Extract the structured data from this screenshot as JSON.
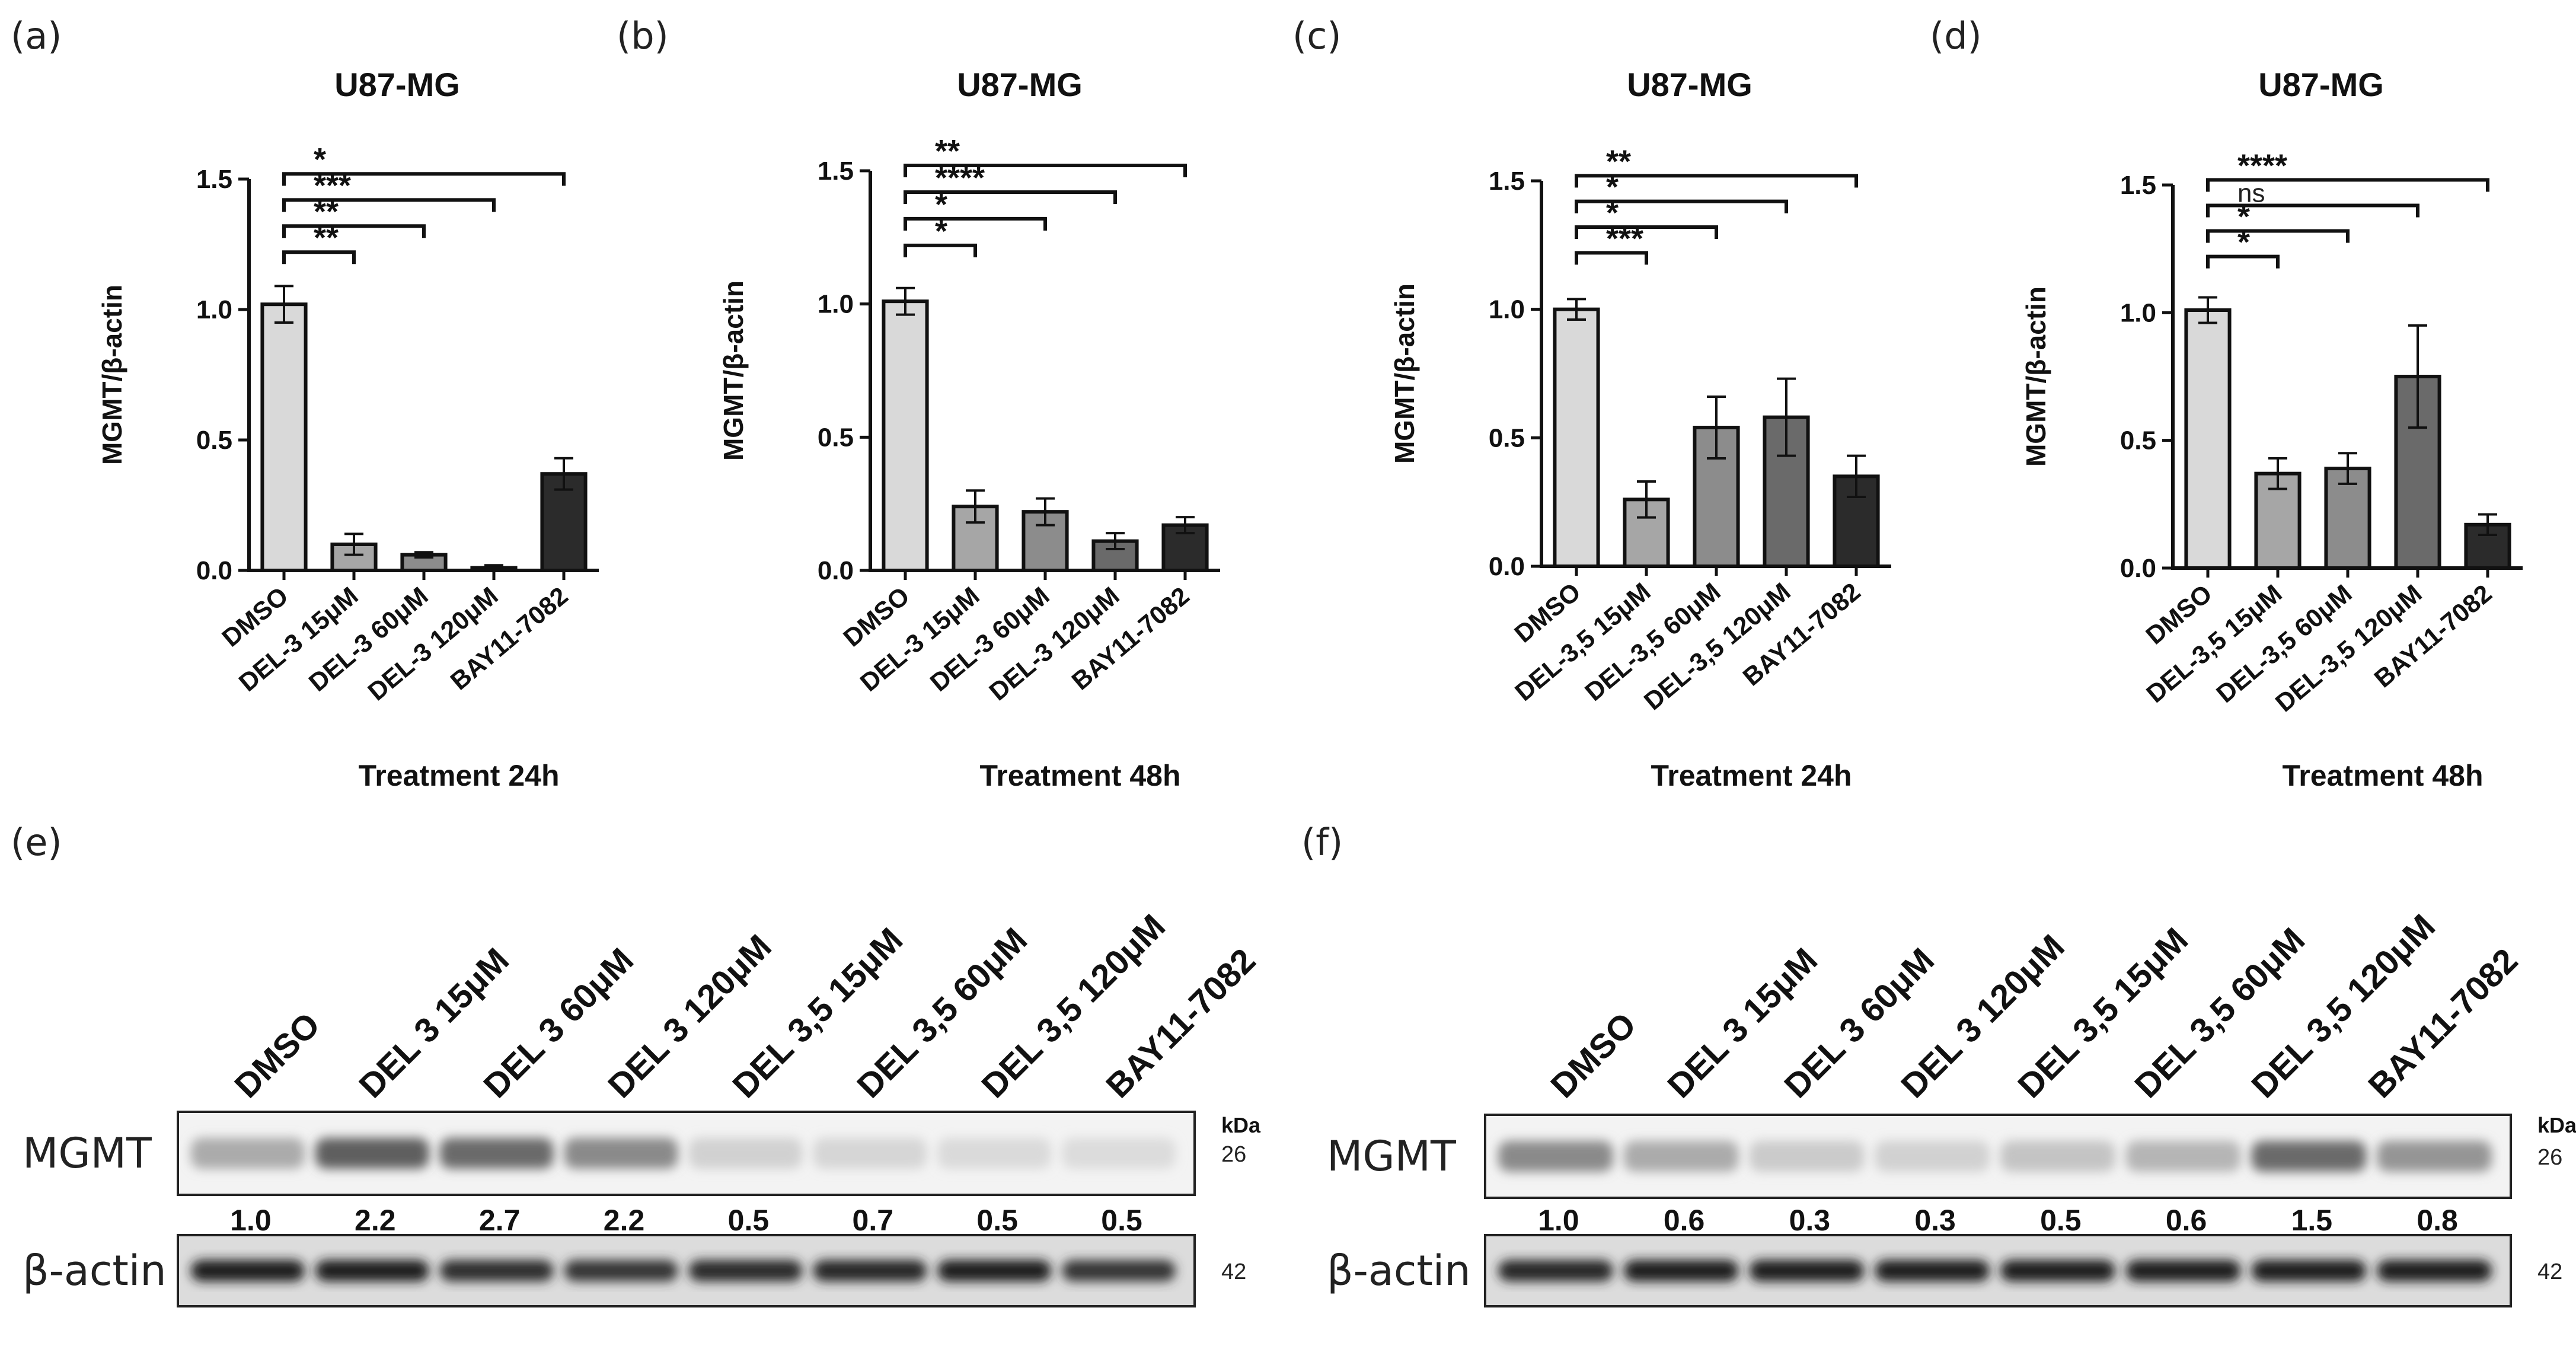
{
  "chart_data": [
    {
      "panel": "(a)",
      "type": "bar",
      "title": "U87-MG",
      "xlabel": "Treatment 24h",
      "ylabel": "MGMT/β-actin",
      "ylim": [
        0,
        1.5
      ],
      "yticks": [
        "0.0",
        "0.5",
        "1.0",
        "1.5"
      ],
      "categories": [
        "DMSO",
        "DEL-3 15μM",
        "DEL-3 60μM",
        "DEL-3 120μM",
        "BAY11-7082"
      ],
      "values": [
        1.02,
        0.1,
        0.06,
        0.01,
        0.37
      ],
      "errors": [
        0.07,
        0.04,
        0.01,
        0.01,
        0.06
      ],
      "colors": [
        "#d9d9d9",
        "#a6a6a6",
        "#8c8c8c",
        "#6a6a6a",
        "#2b2b2b"
      ],
      "significance": [
        {
          "to": 1,
          "label": "**"
        },
        {
          "to": 2,
          "label": "**"
        },
        {
          "to": 3,
          "label": "***"
        },
        {
          "to": 4,
          "label": "*"
        }
      ]
    },
    {
      "panel": "(b)",
      "type": "bar",
      "title": "U87-MG",
      "xlabel": "Treatment 48h",
      "ylabel": "MGMT/β-actin",
      "ylim": [
        0,
        1.5
      ],
      "yticks": [
        "0.0",
        "0.5",
        "1.0",
        "1.5"
      ],
      "categories": [
        "DMSO",
        "DEL-3 15μM",
        "DEL-3 60μM",
        "DEL-3 120μM",
        "BAY11-7082"
      ],
      "values": [
        1.01,
        0.24,
        0.22,
        0.11,
        0.17
      ],
      "errors": [
        0.05,
        0.06,
        0.05,
        0.03,
        0.03
      ],
      "colors": [
        "#d9d9d9",
        "#a6a6a6",
        "#8c8c8c",
        "#6a6a6a",
        "#2b2b2b"
      ],
      "significance": [
        {
          "to": 1,
          "label": "*"
        },
        {
          "to": 2,
          "label": "*"
        },
        {
          "to": 3,
          "label": "****"
        },
        {
          "to": 4,
          "label": "**"
        }
      ]
    },
    {
      "panel": "(c)",
      "type": "bar",
      "title": "U87-MG",
      "xlabel": "Treatment 24h",
      "ylabel": "MGMT/β-actin",
      "ylim": [
        0,
        1.5
      ],
      "yticks": [
        "0.0",
        "0.5",
        "1.0",
        "1.5"
      ],
      "categories": [
        "DMSO",
        "DEL-3,5 15μM",
        "DEL-3,5 60μM",
        "DEL-3,5 120μM",
        "BAY11-7082"
      ],
      "values": [
        1.0,
        0.26,
        0.54,
        0.58,
        0.35
      ],
      "errors": [
        0.04,
        0.07,
        0.12,
        0.15,
        0.08
      ],
      "colors": [
        "#d9d9d9",
        "#a6a6a6",
        "#8c8c8c",
        "#6a6a6a",
        "#2b2b2b"
      ],
      "significance": [
        {
          "to": 1,
          "label": "***"
        },
        {
          "to": 2,
          "label": "*"
        },
        {
          "to": 3,
          "label": "*"
        },
        {
          "to": 4,
          "label": "**"
        }
      ]
    },
    {
      "panel": "(d)",
      "type": "bar",
      "title": "U87-MG",
      "xlabel": "Treatment 48h",
      "ylabel": "MGMT/β-actin",
      "ylim": [
        0,
        1.5
      ],
      "yticks": [
        "0.0",
        "0.5",
        "1.0",
        "1.5"
      ],
      "categories": [
        "DMSO",
        "DEL-3,5 15μM",
        "DEL-3,5 60μM",
        "DEL-3,5 120μM",
        "BAY11-7082"
      ],
      "values": [
        1.01,
        0.37,
        0.39,
        0.75,
        0.17
      ],
      "errors": [
        0.05,
        0.06,
        0.06,
        0.2,
        0.04
      ],
      "colors": [
        "#d9d9d9",
        "#a6a6a6",
        "#8c8c8c",
        "#6a6a6a",
        "#2b2b2b"
      ],
      "significance": [
        {
          "to": 1,
          "label": "*"
        },
        {
          "to": 2,
          "label": "*"
        },
        {
          "to": 3,
          "label": "ns"
        },
        {
          "to": 4,
          "label": "****"
        }
      ]
    }
  ],
  "blots": [
    {
      "panel": "(e)",
      "lanes": [
        "DMSO",
        "DEL 3 15μM",
        "DEL 3 60μM",
        "DEL 3 120μM",
        "DEL 3,5 15μM",
        "DEL 3,5 60μM",
        "DEL 3,5 120μM",
        "BAY11-7082"
      ],
      "kda_label": "kDa",
      "rows": [
        {
          "label": "MGMT",
          "kda": "26",
          "intensity": [
            0.3,
            0.65,
            0.6,
            0.45,
            0.12,
            0.1,
            0.08,
            0.07
          ]
        },
        {
          "label": "β-actin",
          "kda": "42",
          "intensity": [
            0.95,
            0.95,
            0.88,
            0.85,
            0.9,
            0.92,
            0.95,
            0.85
          ]
        }
      ],
      "ratios": [
        "1.0",
        "2.2",
        "2.7",
        "2.2",
        "0.5",
        "0.7",
        "0.5",
        "0.5"
      ]
    },
    {
      "panel": "(f)",
      "lanes": [
        "DMSO",
        "DEL 3 15μM",
        "DEL 3 60μM",
        "DEL 3 120μM",
        "DEL 3,5 15μM",
        "DEL 3,5 60μM",
        "DEL 3,5 120μM",
        "BAY11-7082"
      ],
      "kda_label": "kDa",
      "rows": [
        {
          "label": "MGMT",
          "kda": "26",
          "intensity": [
            0.45,
            0.3,
            0.15,
            0.12,
            0.18,
            0.25,
            0.6,
            0.4
          ]
        },
        {
          "label": "β-actin",
          "kda": "42",
          "intensity": [
            0.92,
            0.95,
            0.97,
            0.95,
            0.95,
            0.97,
            0.97,
            0.95
          ]
        }
      ],
      "ratios": [
        "1.0",
        "0.6",
        "0.3",
        "0.3",
        "0.5",
        "0.6",
        "1.5",
        "0.8"
      ]
    }
  ]
}
